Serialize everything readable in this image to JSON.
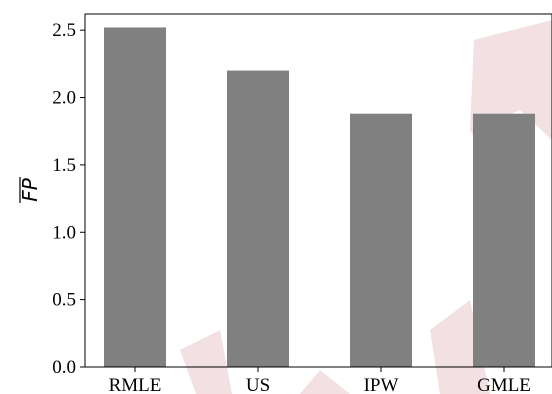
{
  "chart_data": {
    "type": "bar",
    "categories": [
      "RMLE",
      "US",
      "IPW",
      "GMLE"
    ],
    "values": [
      2.52,
      2.2,
      1.88,
      1.88
    ],
    "title": "",
    "xlabel": "",
    "ylabel": "FP",
    "ylabel_overline": true,
    "ylim": [
      0.0,
      2.62
    ],
    "yticks": [
      "0.0",
      "0.5",
      "1.0",
      "1.5",
      "2.0",
      "2.5"
    ],
    "ytick_values": [
      0.0,
      0.5,
      1.0,
      1.5,
      2.0,
      2.5
    ],
    "grid": false,
    "bar_color": "#808080",
    "watermark_color": "#d9a6ad"
  }
}
